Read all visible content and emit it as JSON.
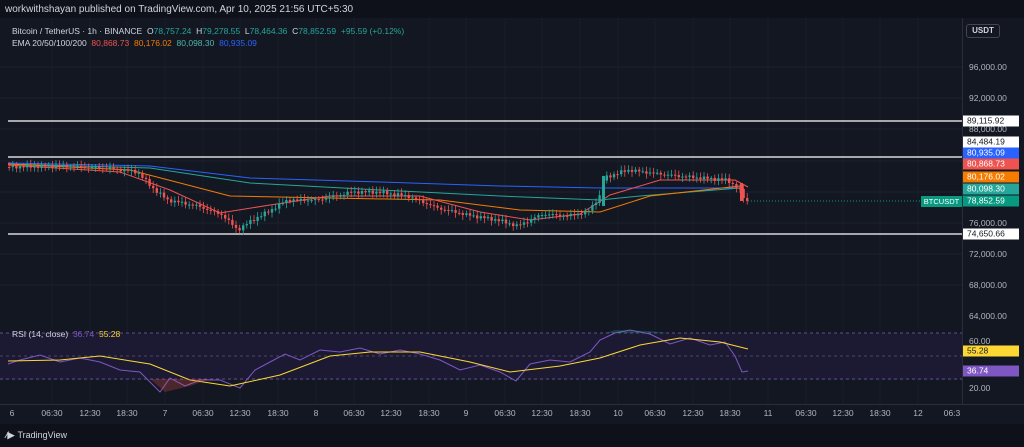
{
  "header": {
    "publish_text": "workwithshayan published on TradingView.com, Apr 10, 2025 21:56 UTC+5:30"
  },
  "legend": {
    "symbol": "Bitcoin / TetherUS · 1h · BINANCE",
    "open_label": "O",
    "open": "78,757.24",
    "high_label": "H",
    "high": "79,278.55",
    "low_label": "L",
    "low": "78,464.36",
    "close_label": "C",
    "close": "78,852.59",
    "change": "+95.59 (+0.12%)",
    "ema_label": "EMA 20/50/100/200",
    "ema20": "80,868.73",
    "ema50": "80,176.02",
    "ema100": "80,098.30",
    "ema200": "80,935.09"
  },
  "currency_button": "USDT",
  "price_axis": {
    "labels": [
      "96,000.00",
      "92,000.00",
      "88,000.00",
      "76,000.00",
      "72,000.00",
      "68,000.00",
      "64,000.00"
    ],
    "hlines": [
      "89,115.92",
      "84,484.19",
      "74,650.66"
    ],
    "ema200_tag": "80,935.09",
    "ema20_tag": "80,868.73",
    "ema50_tag": "80,176.02",
    "ema100_tag": "80,098.30",
    "last_price_tag": "78,852.59",
    "symbol_tag": "BTCUSDT"
  },
  "rsi": {
    "label": "RSI (14, close)",
    "rsi_value": "36.74",
    "ma_value": "55.28",
    "axis_labels": [
      "60.00",
      "20.00"
    ],
    "tag_ma": "55.28",
    "tag_rsi": "36.74"
  },
  "time_axis": [
    "6",
    "06:30",
    "12:30",
    "18:30",
    "7",
    "06:30",
    "12:30",
    "18:30",
    "8",
    "06:30",
    "12:30",
    "18:30",
    "9",
    "06:30",
    "12:30",
    "18:30",
    "10",
    "06:30",
    "12:30",
    "18:30",
    "11",
    "06:30",
    "12:30",
    "18:30",
    "12",
    "06:3"
  ],
  "footer": {
    "brand": "TradingView"
  },
  "colors": {
    "up": "#26a69a",
    "down": "#ef5350",
    "ema20": "#ef5350",
    "ema50": "#f57c00",
    "ema100": "#26a69a",
    "ema200": "#2962ff",
    "rsi_line": "#7e57c2",
    "rsi_ma": "#fdd835"
  }
}
